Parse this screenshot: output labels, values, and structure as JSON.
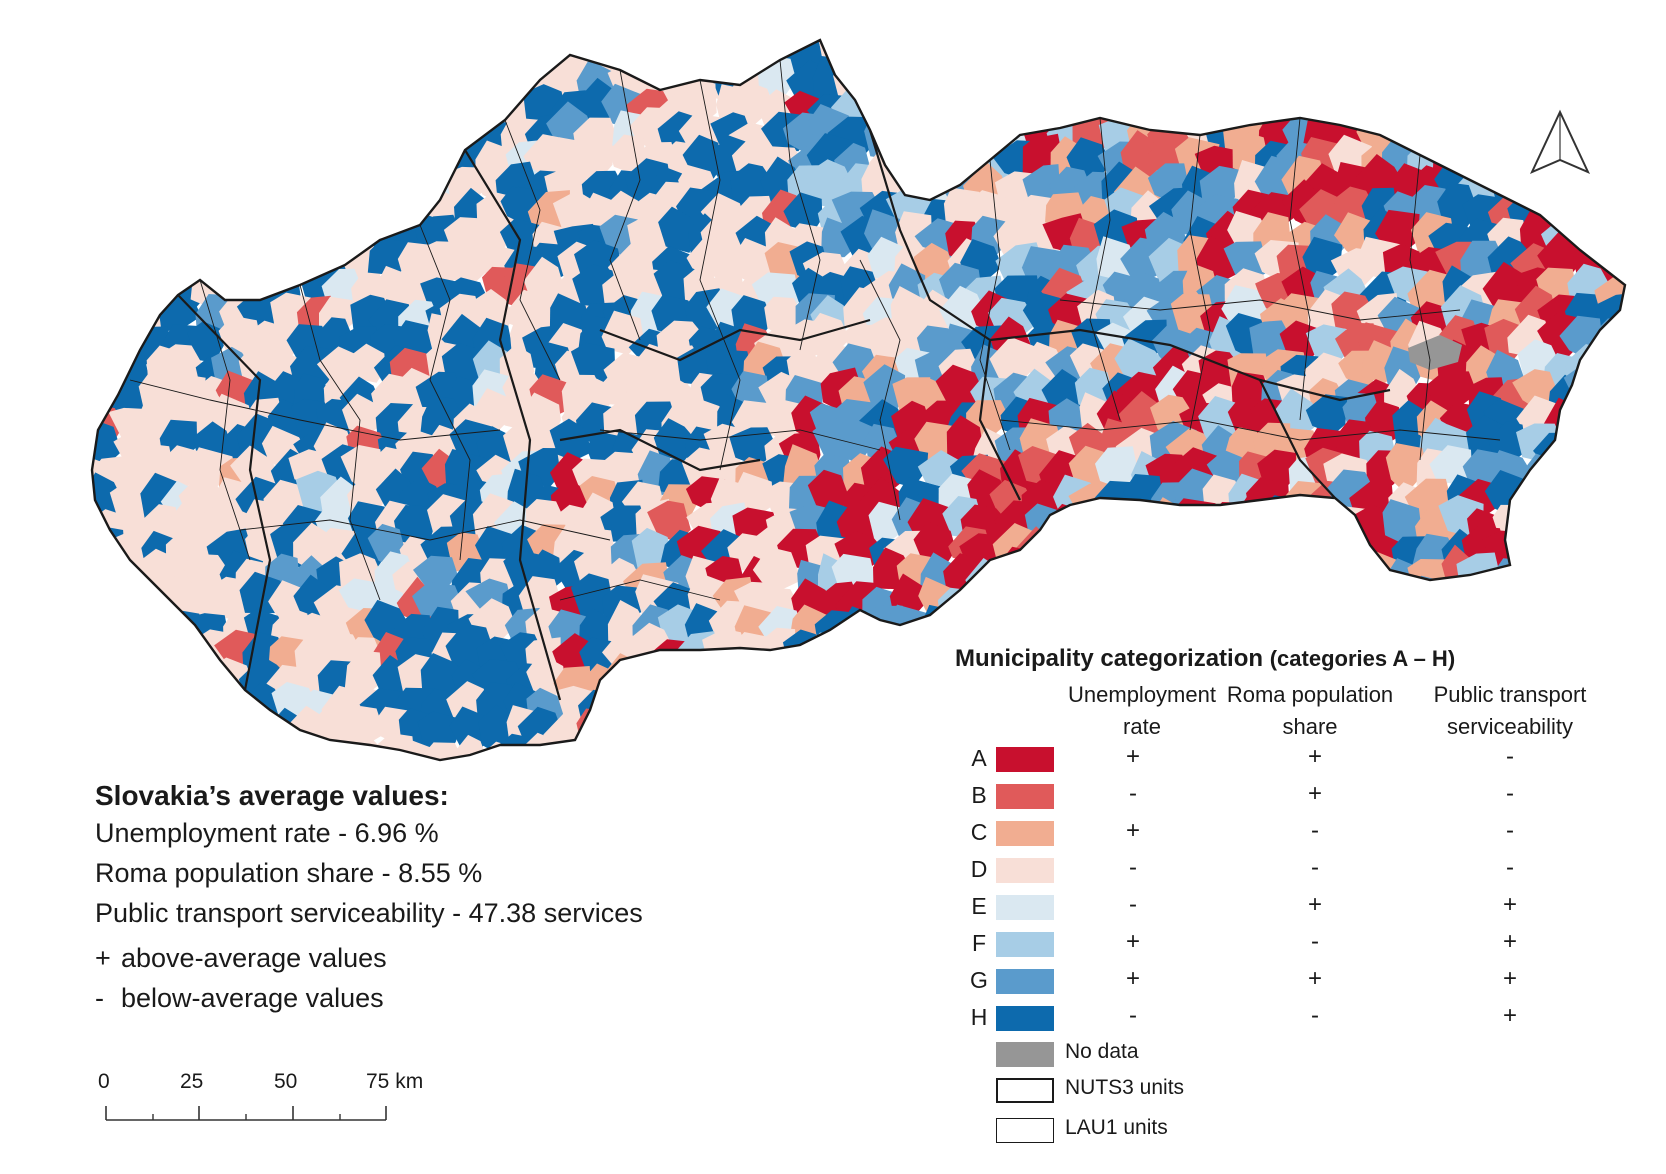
{
  "colors": {
    "A": "#c8102e",
    "B": "#e05a5a",
    "C": "#f1ad91",
    "D": "#f8dfd7",
    "E": "#dae8f1",
    "F": "#a7cde6",
    "G": "#5a9bcc",
    "H": "#0d6aad",
    "no_data": "#969696",
    "boundary": "#1a1a1a"
  },
  "averages": {
    "title": "Slovakia’s average values:",
    "unemployment": "Unemployment rate - 6.96 %",
    "roma": "Roma population share -  8.55 %",
    "transport": "Public transport serviceability - 47.38 services",
    "above_sign": "+",
    "above_text": "above-average values",
    "below_sign": "-",
    "below_text": "below-average values"
  },
  "scale": {
    "ticks": [
      "0",
      "25",
      "50",
      "75 km"
    ]
  },
  "legend": {
    "title": "Municipality categorization",
    "title_sub": "(categories A – H)",
    "col1": [
      "Unemployment",
      "rate"
    ],
    "col2": [
      "Roma population",
      "share"
    ],
    "col3": [
      "Public transport",
      "serviceability"
    ],
    "rows": [
      {
        "letter": "A",
        "unemp": "+",
        "roma": "+",
        "transport": "-"
      },
      {
        "letter": "B",
        "unemp": "-",
        "roma": "+",
        "transport": "-"
      },
      {
        "letter": "C",
        "unemp": "+",
        "roma": "-",
        "transport": "-"
      },
      {
        "letter": "D",
        "unemp": "-",
        "roma": "-",
        "transport": "-"
      },
      {
        "letter": "E",
        "unemp": "-",
        "roma": "+",
        "transport": "+"
      },
      {
        "letter": "F",
        "unemp": "+",
        "roma": "-",
        "transport": "+"
      },
      {
        "letter": "G",
        "unemp": "+",
        "roma": "+",
        "transport": "+"
      },
      {
        "letter": "H",
        "unemp": "-",
        "roma": "-",
        "transport": "+"
      }
    ],
    "no_data": "No data",
    "nuts3": "NUTS3 units",
    "lau1": "LAU1 units"
  },
  "north_arrow_icon": "north-arrow-icon"
}
